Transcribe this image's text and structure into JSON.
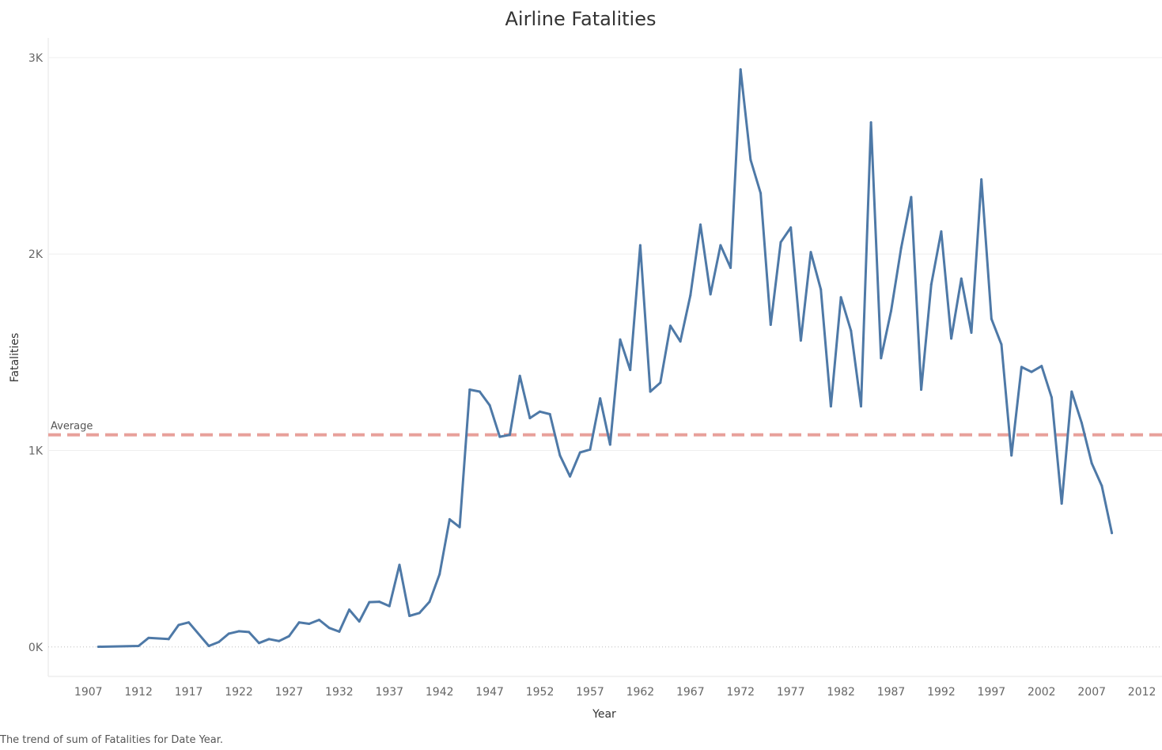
{
  "chart_data": {
    "type": "line",
    "title": "Airline Fatalities",
    "xlabel": "Year",
    "ylabel": "Fatalities",
    "caption": "The trend of sum of Fatalities for Date Year.",
    "xlim": [
      1903,
      2014
    ],
    "ylim": [
      -150,
      3100
    ],
    "x_ticks": [
      1907,
      1912,
      1917,
      1922,
      1927,
      1932,
      1937,
      1942,
      1947,
      1952,
      1957,
      1962,
      1967,
      1972,
      1977,
      1982,
      1987,
      1992,
      1997,
      2002,
      2007,
      2012
    ],
    "x_tick_labels": [
      "1907",
      "1912",
      "1917",
      "1922",
      "1927",
      "1932",
      "1937",
      "1942",
      "1947",
      "1952",
      "1957",
      "1962",
      "1967",
      "1972",
      "1977",
      "1982",
      "1987",
      "1992",
      "1997",
      "2002",
      "2007",
      "2012"
    ],
    "y_ticks": [
      0,
      1000,
      2000,
      3000
    ],
    "y_tick_labels": [
      "0K",
      "1K",
      "2K",
      "3K"
    ],
    "grid": true,
    "line_color": "#4e79a7",
    "reference_line": {
      "label": "Average",
      "value": 1080,
      "color": "#e8a09a"
    },
    "series": [
      {
        "x": [
          1908,
          1912,
          1913,
          1915,
          1916,
          1917,
          1919,
          1920,
          1921,
          1922,
          1923,
          1924,
          1925,
          1926,
          1927,
          1928,
          1929,
          1930,
          1931,
          1932,
          1933,
          1934,
          1935,
          1936,
          1937,
          1938,
          1939,
          1940,
          1941,
          1942,
          1943,
          1944,
          1945,
          1946,
          1947,
          1948,
          1949,
          1950,
          1951,
          1952,
          1953,
          1954,
          1955,
          1956,
          1957,
          1958,
          1959,
          1960,
          1961,
          1962,
          1963,
          1964,
          1965,
          1966,
          1967,
          1968,
          1969,
          1970,
          1971,
          1972,
          1973,
          1974,
          1975,
          1976,
          1977,
          1978,
          1979,
          1980,
          1981,
          1982,
          1983,
          1984,
          1985,
          1986,
          1987,
          1988,
          1989,
          1990,
          1991,
          1992,
          1993,
          1994,
          1995,
          1996,
          1997,
          1998,
          1999,
          2000,
          2001,
          2002,
          2003,
          2004,
          2005,
          2006,
          2007,
          2008,
          2009
        ],
        "y": [
          1,
          5,
          46,
          40,
          112,
          125,
          5,
          25,
          68,
          80,
          76,
          20,
          40,
          30,
          55,
          125,
          118,
          138,
          97,
          78,
          190,
          130,
          228,
          230,
          208,
          418,
          158,
          173,
          230,
          370,
          650,
          610,
          1310,
          1300,
          1230,
          1070,
          1080,
          1380,
          1165,
          1198,
          1185,
          975,
          868,
          990,
          1005,
          1265,
          1030,
          1565,
          1410,
          2045,
          1300,
          1345,
          1635,
          1555,
          1790,
          2150,
          1795,
          2045,
          1930,
          2940,
          2480,
          2310,
          1640,
          2060,
          2135,
          1560,
          2010,
          1820,
          1225,
          1780,
          1610,
          1225,
          2670,
          1470,
          1710,
          2030,
          2290,
          1310,
          1845,
          2115,
          1570,
          1875,
          1600,
          2380,
          1670,
          1540,
          975,
          1425,
          1400,
          1430,
          1270,
          730,
          1300,
          1140,
          935,
          820,
          580
        ]
      }
    ]
  }
}
